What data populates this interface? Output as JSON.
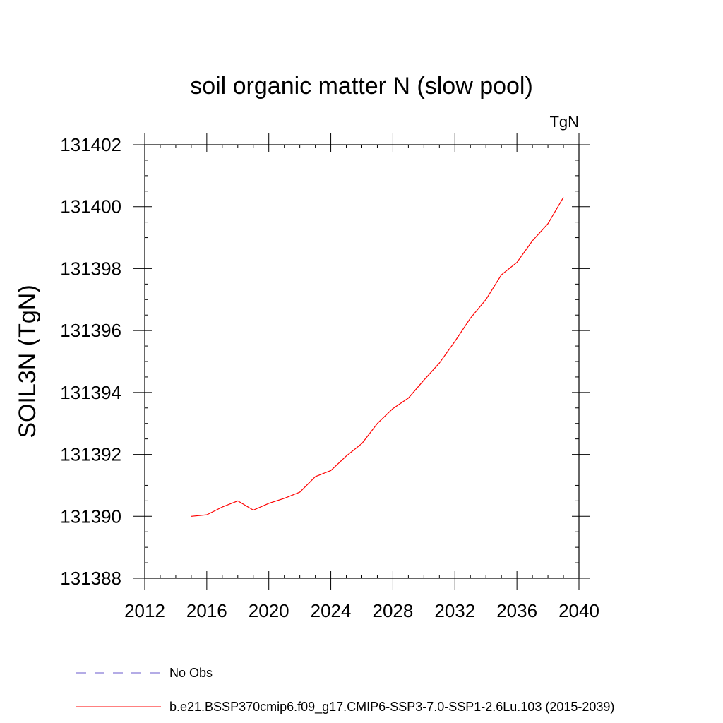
{
  "chart_data": {
    "type": "line",
    "title": "soil organic matter N (slow pool)",
    "units": "TgN",
    "ylabel": "SOIL3N  (TgN)",
    "xlabel": "",
    "xlim": [
      2012,
      2040
    ],
    "ylim": [
      131388,
      131402
    ],
    "xticks": [
      "2012",
      "2016",
      "2020",
      "2024",
      "2028",
      "2032",
      "2036",
      "2040"
    ],
    "yticks": [
      "131388",
      "131390",
      "131392",
      "131394",
      "131396",
      "131398",
      "131400",
      "131402"
    ],
    "grid": false,
    "legend_position": "bottom",
    "series": [
      {
        "name": "No Obs",
        "color": "#6a5acd",
        "style": "dashed",
        "x": [],
        "y": []
      },
      {
        "name": "b.e21.BSSP370cmip6.f09_g17.CMIP6-SSP3-7.0-SSP1-2.6Lu.103 (2015-2039)",
        "color": "#ff0000",
        "style": "solid",
        "x": [
          2015,
          2016,
          2017,
          2018,
          2019,
          2020,
          2021,
          2022,
          2023,
          2024,
          2025,
          2026,
          2027,
          2028,
          2029,
          2030,
          2031,
          2032,
          2033,
          2034,
          2035,
          2036,
          2037,
          2038,
          2039
        ],
        "y": [
          131390.0,
          131390.05,
          131390.3,
          131390.5,
          131390.2,
          131390.42,
          131390.58,
          131390.78,
          131391.28,
          131391.48,
          131391.95,
          131392.35,
          131393.0,
          131393.48,
          131393.82,
          131394.4,
          131394.95,
          131395.65,
          131396.4,
          131397.0,
          131397.8,
          131398.2,
          131398.9,
          131399.45,
          131400.3
        ]
      }
    ]
  }
}
